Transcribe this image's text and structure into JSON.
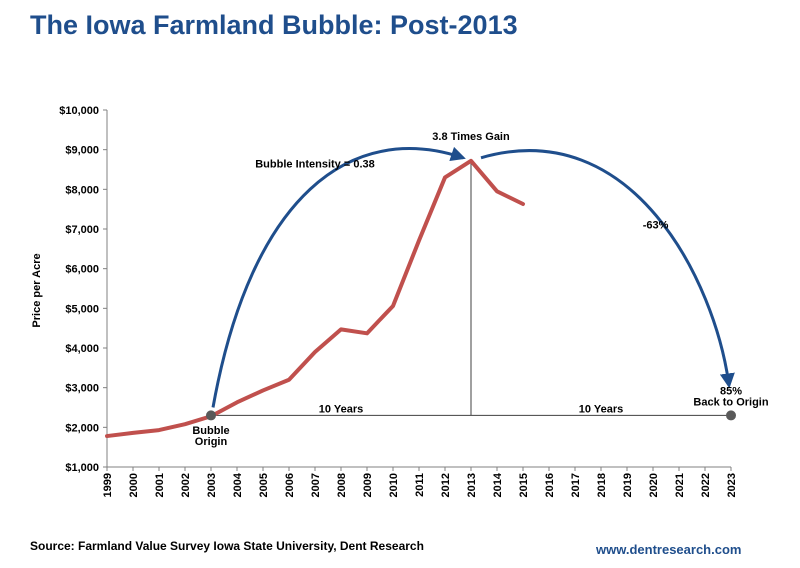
{
  "title": "The Iowa Farmland Bubble: Post-2013",
  "source": "Source: Farmland Value Survey Iowa State University, Dent Research",
  "website": "www.dentresearch.com",
  "colors": {
    "title": "#1f4e8c",
    "price_line": "#c0504d",
    "arc": "#1f4e8c",
    "reference_lines": "#404040",
    "markers": "#595959"
  },
  "chart_data": {
    "type": "line",
    "title": "The Iowa Farmland Bubble: Post-2013",
    "xlabel": "",
    "ylabel": "Price per Acre",
    "xlim": [
      1999,
      2023
    ],
    "ylim": [
      1000,
      10000
    ],
    "x_ticks": [
      1999,
      2000,
      2001,
      2002,
      2003,
      2004,
      2005,
      2006,
      2007,
      2008,
      2009,
      2010,
      2011,
      2012,
      2013,
      2014,
      2015,
      2016,
      2017,
      2018,
      2019,
      2020,
      2021,
      2022,
      2023
    ],
    "y_ticks": [
      1000,
      2000,
      3000,
      4000,
      5000,
      6000,
      7000,
      8000,
      9000,
      10000
    ],
    "y_tick_labels": [
      "$1,000",
      "$2,000",
      "$3,000",
      "$4,000",
      "$5,000",
      "$6,000",
      "$7,000",
      "$8,000",
      "$9,000",
      "$10,000"
    ],
    "grid": false,
    "series": [
      {
        "x": [
          1999,
          2000,
          2001,
          2002,
          2003,
          2004,
          2005,
          2006,
          2007,
          2008,
          2009,
          2010,
          2011,
          2012,
          2013,
          2014,
          2015
        ],
        "values": [
          1780,
          1860,
          1930,
          2080,
          2280,
          2630,
          2930,
          3200,
          3900,
          4470,
          4370,
          5060,
          6710,
          8300,
          8720,
          7950,
          7630
        ]
      }
    ],
    "markers": [
      {
        "label": "Bubble Origin",
        "x": 2003,
        "y": 2300
      },
      {
        "label": "85% Back to Origin",
        "x": 2023,
        "y": 2300
      }
    ],
    "baseline": {
      "y": 2300,
      "from_x": 2003,
      "to_x": 2023
    },
    "peak_line": {
      "x": 2013,
      "from_y": 2300,
      "to_y": 8720
    },
    "annotations": [
      {
        "text": "Bubble Intensity = 0.38",
        "x": 2007,
        "y": 8650
      },
      {
        "text": "3.8 Times Gain",
        "x": 2013,
        "y": 9350
      },
      {
        "text": "-63%",
        "x": 2020.1,
        "y": 7110
      },
      {
        "text": "10 Years",
        "x": 2008,
        "y": 2470
      },
      {
        "text": "10 Years",
        "x": 2018,
        "y": 2470
      },
      {
        "text": "Bubble",
        "x": 2003,
        "y": 1930
      },
      {
        "text": "Origin",
        "x": 2003,
        "y": 1660
      },
      {
        "text": "85%",
        "x": 2023,
        "y": 2930
      },
      {
        "text": "Back to Origin",
        "x": 2023,
        "y": 2650
      }
    ]
  }
}
